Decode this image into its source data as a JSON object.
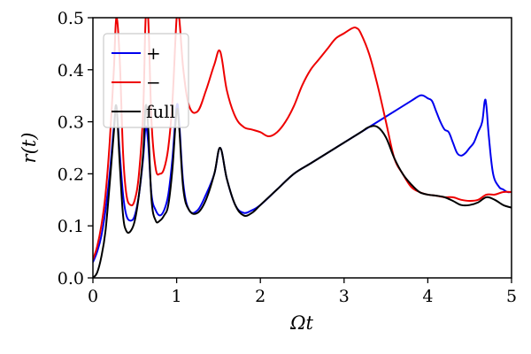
{
  "chart_data": {
    "type": "line",
    "xlabel": "Ωt",
    "ylabel": "r(t)",
    "xlim": [
      0,
      5
    ],
    "ylim": [
      0,
      0.5
    ],
    "xticks": [
      "0",
      "1",
      "2",
      "3",
      "4",
      "5"
    ],
    "yticks": [
      "0.0",
      "0.1",
      "0.2",
      "0.3",
      "0.4",
      "0.5"
    ],
    "grid": false,
    "legend_position": "top-left",
    "series": [
      {
        "name": "+",
        "color": "#0000ee",
        "x": [
          0,
          0.05,
          0.1,
          0.15,
          0.2,
          0.25,
          0.28,
          0.32,
          0.36,
          0.4,
          0.45,
          0.5,
          0.55,
          0.6,
          0.63,
          0.66,
          0.7,
          0.75,
          0.8,
          0.85,
          0.9,
          0.95,
          1.0,
          1.03,
          1.08,
          1.15,
          1.25,
          1.35,
          1.45,
          1.52,
          1.6,
          1.7,
          1.8,
          1.9,
          2.0,
          2.2,
          2.4,
          2.6,
          2.8,
          3.0,
          3.2,
          3.4,
          3.6,
          3.8,
          3.9,
          3.95,
          4.0,
          4.05,
          4.1,
          4.15,
          4.2,
          4.25,
          4.3,
          4.35,
          4.4,
          4.45,
          4.5,
          4.55,
          4.6,
          4.65,
          4.68,
          4.7,
          4.73,
          4.78,
          4.85,
          4.9,
          4.95,
          5.0
        ],
        "y": [
          0.03,
          0.05,
          0.08,
          0.13,
          0.2,
          0.29,
          0.33,
          0.24,
          0.16,
          0.12,
          0.11,
          0.12,
          0.16,
          0.23,
          0.29,
          0.26,
          0.16,
          0.13,
          0.12,
          0.13,
          0.16,
          0.23,
          0.33,
          0.3,
          0.18,
          0.13,
          0.13,
          0.16,
          0.2,
          0.25,
          0.19,
          0.14,
          0.125,
          0.13,
          0.14,
          0.17,
          0.2,
          0.22,
          0.24,
          0.26,
          0.28,
          0.3,
          0.32,
          0.34,
          0.35,
          0.35,
          0.345,
          0.34,
          0.32,
          0.3,
          0.285,
          0.28,
          0.26,
          0.24,
          0.235,
          0.24,
          0.25,
          0.26,
          0.28,
          0.3,
          0.34,
          0.33,
          0.27,
          0.2,
          0.175,
          0.17,
          0.165,
          0.165
        ]
      },
      {
        "name": "−",
        "color": "#ee0000",
        "x": [
          0,
          0.05,
          0.1,
          0.15,
          0.2,
          0.25,
          0.28,
          0.32,
          0.36,
          0.4,
          0.45,
          0.5,
          0.55,
          0.6,
          0.63,
          0.66,
          0.7,
          0.75,
          0.8,
          0.85,
          0.9,
          0.95,
          1.0,
          1.03,
          1.08,
          1.15,
          1.25,
          1.35,
          1.45,
          1.52,
          1.6,
          1.7,
          1.8,
          1.9,
          2.0,
          2.1,
          2.2,
          2.3,
          2.4,
          2.5,
          2.6,
          2.7,
          2.8,
          2.9,
          3.0,
          3.1,
          3.15,
          3.2,
          3.3,
          3.4,
          3.5,
          3.6,
          3.7,
          3.8,
          3.9,
          4.0,
          4.1,
          4.2,
          4.3,
          4.4,
          4.5,
          4.6,
          4.7,
          4.8,
          4.9,
          5.0
        ],
        "y": [
          0.035,
          0.06,
          0.1,
          0.16,
          0.26,
          0.4,
          0.5,
          0.42,
          0.24,
          0.16,
          0.14,
          0.15,
          0.2,
          0.32,
          0.5,
          0.5,
          0.3,
          0.21,
          0.2,
          0.21,
          0.25,
          0.34,
          0.5,
          0.5,
          0.4,
          0.33,
          0.32,
          0.36,
          0.41,
          0.435,
          0.36,
          0.31,
          0.29,
          0.285,
          0.28,
          0.272,
          0.28,
          0.3,
          0.33,
          0.37,
          0.4,
          0.42,
          0.44,
          0.46,
          0.47,
          0.48,
          0.48,
          0.47,
          0.43,
          0.37,
          0.3,
          0.23,
          0.2,
          0.175,
          0.165,
          0.16,
          0.158,
          0.155,
          0.155,
          0.15,
          0.148,
          0.15,
          0.16,
          0.16,
          0.165,
          0.165
        ]
      },
      {
        "name": "full",
        "color": "#000000",
        "x": [
          0,
          0.05,
          0.1,
          0.15,
          0.2,
          0.25,
          0.28,
          0.32,
          0.36,
          0.4,
          0.45,
          0.5,
          0.55,
          0.6,
          0.63,
          0.66,
          0.7,
          0.75,
          0.8,
          0.85,
          0.9,
          0.95,
          1.0,
          1.03,
          1.08,
          1.15,
          1.25,
          1.35,
          1.45,
          1.52,
          1.6,
          1.7,
          1.8,
          1.9,
          2.0,
          2.2,
          2.4,
          2.6,
          2.8,
          3.0,
          3.2,
          3.3,
          3.4,
          3.5,
          3.6,
          3.7,
          3.8,
          3.9,
          4.0,
          4.1,
          4.2,
          4.3,
          4.4,
          4.5,
          4.6,
          4.7,
          4.8,
          4.9,
          5.0
        ],
        "y": [
          0.0,
          0.01,
          0.04,
          0.09,
          0.18,
          0.28,
          0.33,
          0.22,
          0.12,
          0.09,
          0.09,
          0.11,
          0.16,
          0.24,
          0.33,
          0.29,
          0.15,
          0.11,
          0.11,
          0.12,
          0.14,
          0.21,
          0.32,
          0.29,
          0.17,
          0.13,
          0.125,
          0.15,
          0.2,
          0.25,
          0.19,
          0.14,
          0.12,
          0.125,
          0.14,
          0.17,
          0.2,
          0.22,
          0.24,
          0.26,
          0.28,
          0.29,
          0.29,
          0.27,
          0.23,
          0.2,
          0.18,
          0.165,
          0.16,
          0.158,
          0.155,
          0.148,
          0.14,
          0.14,
          0.145,
          0.155,
          0.15,
          0.14,
          0.135
        ]
      }
    ]
  }
}
